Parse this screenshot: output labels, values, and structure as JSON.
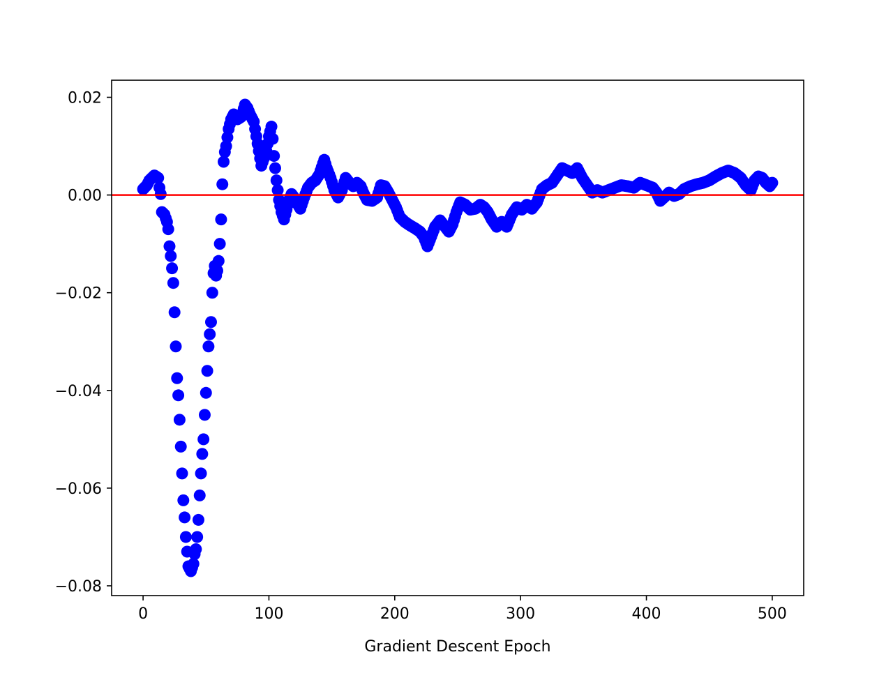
{
  "chart_data": {
    "type": "scatter",
    "title": "",
    "xlabel": "Gradient Descent Epoch",
    "ylabel": "",
    "xlim": [
      -25,
      525
    ],
    "ylim": [
      -0.082,
      0.0235
    ],
    "xticks": [
      0,
      100,
      200,
      300,
      400,
      500
    ],
    "xtick_labels": [
      "0",
      "100",
      "200",
      "300",
      "400",
      "500"
    ],
    "yticks": [
      -0.08,
      -0.06,
      -0.04,
      -0.02,
      0.0,
      0.02
    ],
    "ytick_labels": [
      "−0.08",
      "−0.06",
      "−0.04",
      "−0.02",
      "0.00",
      "0.02"
    ],
    "grid": false,
    "legend": "none",
    "marker_color": "#0000ff",
    "reference_line": {
      "y": 0.0,
      "color": "#ff0000"
    },
    "keypoints": [
      [
        0,
        0.0012
      ],
      [
        3,
        0.002
      ],
      [
        5,
        0.003
      ],
      [
        9,
        0.004
      ],
      [
        12,
        0.0035
      ],
      [
        13,
        0.0015
      ],
      [
        14,
        0.0002
      ],
      [
        15,
        -0.0035
      ],
      [
        17,
        -0.004
      ],
      [
        19,
        -0.0055
      ],
      [
        20,
        -0.007
      ],
      [
        21,
        -0.0105
      ],
      [
        22,
        -0.0125
      ],
      [
        23,
        -0.015
      ],
      [
        24,
        -0.018
      ],
      [
        25,
        -0.024
      ],
      [
        26,
        -0.031
      ],
      [
        27,
        -0.0375
      ],
      [
        28,
        -0.041
      ],
      [
        29,
        -0.046
      ],
      [
        30,
        -0.0515
      ],
      [
        31,
        -0.057
      ],
      [
        32,
        -0.0625
      ],
      [
        33,
        -0.066
      ],
      [
        34,
        -0.07
      ],
      [
        36,
        -0.076
      ],
      [
        38,
        -0.077
      ],
      [
        40,
        -0.0755
      ],
      [
        41,
        -0.0735
      ],
      [
        42,
        -0.0725
      ],
      [
        43,
        -0.07
      ],
      [
        44,
        -0.0665
      ],
      [
        45,
        -0.0615
      ],
      [
        46,
        -0.057
      ],
      [
        47,
        -0.053
      ],
      [
        48,
        -0.05
      ],
      [
        49,
        -0.045
      ],
      [
        50,
        -0.0405
      ],
      [
        51,
        -0.036
      ],
      [
        52,
        -0.031
      ],
      [
        53,
        -0.0285
      ],
      [
        54,
        -0.026
      ],
      [
        55,
        -0.02
      ],
      [
        56,
        -0.016
      ],
      [
        57,
        -0.0145
      ],
      [
        58,
        -0.0165
      ],
      [
        59,
        -0.0155
      ],
      [
        60,
        -0.0135
      ],
      [
        61,
        -0.01
      ],
      [
        62,
        -0.005
      ],
      [
        63,
        0.0022
      ],
      [
        64,
        0.0068
      ],
      [
        65,
        0.0088
      ],
      [
        66,
        0.01
      ],
      [
        67,
        0.0118
      ],
      [
        68,
        0.0135
      ],
      [
        70,
        0.0155
      ],
      [
        72,
        0.0165
      ],
      [
        75,
        0.0155
      ],
      [
        78,
        0.016
      ],
      [
        81,
        0.0185
      ],
      [
        83,
        0.0178
      ],
      [
        85,
        0.0165
      ],
      [
        88,
        0.015
      ],
      [
        90,
        0.012
      ],
      [
        92,
        0.009
      ],
      [
        94,
        0.006
      ],
      [
        96,
        0.0075
      ],
      [
        98,
        0.009
      ],
      [
        100,
        0.012
      ],
      [
        102,
        0.014
      ],
      [
        103,
        0.0115
      ],
      [
        104,
        0.008
      ],
      [
        105,
        0.0055
      ],
      [
        106,
        0.003
      ],
      [
        107,
        0.001
      ],
      [
        108,
        -0.001
      ],
      [
        110,
        -0.0035
      ],
      [
        112,
        -0.005
      ],
      [
        114,
        -0.003
      ],
      [
        116,
        -0.001
      ],
      [
        118,
        0.0002
      ],
      [
        120,
        -0.0005
      ],
      [
        122,
        -0.0015
      ],
      [
        125,
        -0.0028
      ],
      [
        128,
        -0.0005
      ],
      [
        131,
        0.0015
      ],
      [
        134,
        0.0025
      ],
      [
        137,
        0.003
      ],
      [
        140,
        0.0042
      ],
      [
        144,
        0.0072
      ],
      [
        146,
        0.0055
      ],
      [
        149,
        0.0035
      ],
      [
        152,
        0.001
      ],
      [
        155,
        -0.0005
      ],
      [
        158,
        0.001
      ],
      [
        161,
        0.0035
      ],
      [
        164,
        0.0025
      ],
      [
        167,
        0.0018
      ],
      [
        170,
        0.0025
      ],
      [
        173,
        0.0018
      ],
      [
        175,
        0.0005
      ],
      [
        178,
        -0.001
      ],
      [
        182,
        -0.0012
      ],
      [
        186,
        -0.0005
      ],
      [
        189,
        0.002
      ],
      [
        192,
        0.0018
      ],
      [
        195,
        0.0005
      ],
      [
        198,
        -0.001
      ],
      [
        201,
        -0.0025
      ],
      [
        204,
        -0.0045
      ],
      [
        208,
        -0.0055
      ],
      [
        212,
        -0.0062
      ],
      [
        216,
        -0.0068
      ],
      [
        220,
        -0.0075
      ],
      [
        223,
        -0.0085
      ],
      [
        226,
        -0.0105
      ],
      [
        229,
        -0.0085
      ],
      [
        232,
        -0.0065
      ],
      [
        236,
        -0.0052
      ],
      [
        240,
        -0.0065
      ],
      [
        243,
        -0.0075
      ],
      [
        246,
        -0.006
      ],
      [
        249,
        -0.0035
      ],
      [
        252,
        -0.0015
      ],
      [
        256,
        -0.002
      ],
      [
        260,
        -0.003
      ],
      [
        264,
        -0.0028
      ],
      [
        268,
        -0.002
      ],
      [
        271,
        -0.0025
      ],
      [
        274,
        -0.0035
      ],
      [
        277,
        -0.005
      ],
      [
        281,
        -0.0065
      ],
      [
        285,
        -0.0055
      ],
      [
        289,
        -0.0065
      ],
      [
        293,
        -0.004
      ],
      [
        297,
        -0.0025
      ],
      [
        301,
        -0.003
      ],
      [
        305,
        -0.002
      ],
      [
        309,
        -0.0028
      ],
      [
        313,
        -0.0015
      ],
      [
        317,
        0.0012
      ],
      [
        321,
        0.002
      ],
      [
        325,
        0.0025
      ],
      [
        329,
        0.004
      ],
      [
        333,
        0.0055
      ],
      [
        337,
        0.005
      ],
      [
        341,
        0.0045
      ],
      [
        345,
        0.0055
      ],
      [
        349,
        0.0035
      ],
      [
        353,
        0.002
      ],
      [
        357,
        0.0005
      ],
      [
        361,
        0.001
      ],
      [
        365,
        0.0005
      ],
      [
        370,
        0.001
      ],
      [
        375,
        0.0015
      ],
      [
        380,
        0.002
      ],
      [
        385,
        0.0018
      ],
      [
        390,
        0.0015
      ],
      [
        395,
        0.0025
      ],
      [
        400,
        0.002
      ],
      [
        405,
        0.0015
      ],
      [
        408,
        0.0005
      ],
      [
        411,
        -0.0012
      ],
      [
        414,
        -0.0005
      ],
      [
        418,
        0.0005
      ],
      [
        422,
        -0.0002
      ],
      [
        426,
        0.0002
      ],
      [
        430,
        0.0012
      ],
      [
        435,
        0.0018
      ],
      [
        440,
        0.0022
      ],
      [
        445,
        0.0025
      ],
      [
        450,
        0.003
      ],
      [
        455,
        0.0038
      ],
      [
        460,
        0.0045
      ],
      [
        465,
        0.005
      ],
      [
        470,
        0.0045
      ],
      [
        475,
        0.0035
      ],
      [
        479,
        0.002
      ],
      [
        483,
        0.001
      ],
      [
        486,
        0.003
      ],
      [
        489,
        0.0038
      ],
      [
        492,
        0.0035
      ],
      [
        495,
        0.0025
      ],
      [
        498,
        0.0018
      ],
      [
        500,
        0.0025
      ]
    ]
  }
}
